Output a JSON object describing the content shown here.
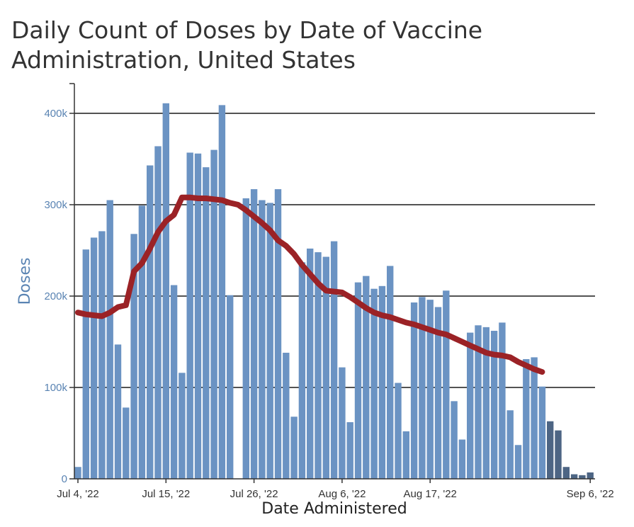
{
  "chart_data": {
    "type": "bar",
    "title": "Daily Count of Doses by Date of Vaccine Administration, United States",
    "xlabel": "Date Administered",
    "ylabel": "Doses",
    "ylim": [
      0,
      420000
    ],
    "y_ticks": [
      0,
      100000,
      200000,
      300000,
      400000
    ],
    "y_tick_labels": [
      "0",
      "100k",
      "200k",
      "300k",
      "400k"
    ],
    "x_ticks": [
      {
        "day": 0,
        "label": "Jul 4, '22"
      },
      {
        "day": 11,
        "label": "Jul 15, '22"
      },
      {
        "day": 22,
        "label": "Jul 26, '22"
      },
      {
        "day": 33,
        "label": "Aug 6, '22"
      },
      {
        "day": 44,
        "label": "Aug 17, '22"
      },
      {
        "day": 64,
        "label": "Sep 6, '22"
      }
    ],
    "grid": true,
    "colors": {
      "bar": "#6b93c3",
      "bar_recent": "#4d6584",
      "average_line": "#9b2226"
    },
    "series": [
      {
        "values": [
          13000,
          251000,
          264000,
          271000,
          305000,
          147000,
          78000,
          268000,
          299000,
          343000,
          364000,
          411000,
          212000,
          116000,
          357000,
          356000,
          341000,
          360000,
          409000,
          201000,
          0,
          307000,
          317000,
          305000,
          302000,
          317000,
          138000,
          68000,
          237000,
          252000,
          248000,
          243000,
          260000,
          122000,
          62000,
          215000,
          222000,
          208000,
          211000,
          233000,
          105000,
          52000,
          193000,
          199000,
          196000,
          188000,
          206000,
          85000,
          43000,
          160000,
          168000,
          166000,
          162000,
          171000,
          75000,
          37000,
          131000,
          133000,
          101000,
          63000,
          53000,
          13000,
          5000,
          4000,
          7000
        ],
        "recent_from_index": 59
      },
      {
        "type": "line",
        "x": [
          0,
          1,
          2,
          3,
          4,
          5,
          6,
          7,
          8,
          9,
          10,
          11,
          12,
          13,
          14,
          15,
          16,
          17,
          18,
          19,
          20,
          21,
          22,
          23,
          24,
          25,
          26,
          27,
          28,
          29,
          30,
          31,
          32,
          33,
          34,
          35,
          36,
          37,
          38,
          39,
          40,
          41,
          42,
          43,
          44,
          45,
          46,
          47,
          48,
          49,
          50,
          51,
          52,
          53,
          54,
          55,
          56,
          57,
          58
        ],
        "values": [
          182000,
          180000,
          179000,
          178000,
          182000,
          188000,
          190000,
          227000,
          236000,
          252000,
          270000,
          282000,
          289000,
          308000,
          308000,
          307000,
          307000,
          306000,
          305000,
          302000,
          300000,
          294000,
          287000,
          280000,
          272000,
          261000,
          255000,
          246000,
          234000,
          224000,
          214000,
          206000,
          205000,
          204000,
          199000,
          193000,
          187000,
          182000,
          179000,
          177000,
          174000,
          171000,
          169000,
          166000,
          163000,
          160000,
          158000,
          154000,
          150000,
          146000,
          142000,
          138000,
          136000,
          135000,
          133000,
          128000,
          124000,
          120000,
          117000
        ]
      }
    ]
  }
}
